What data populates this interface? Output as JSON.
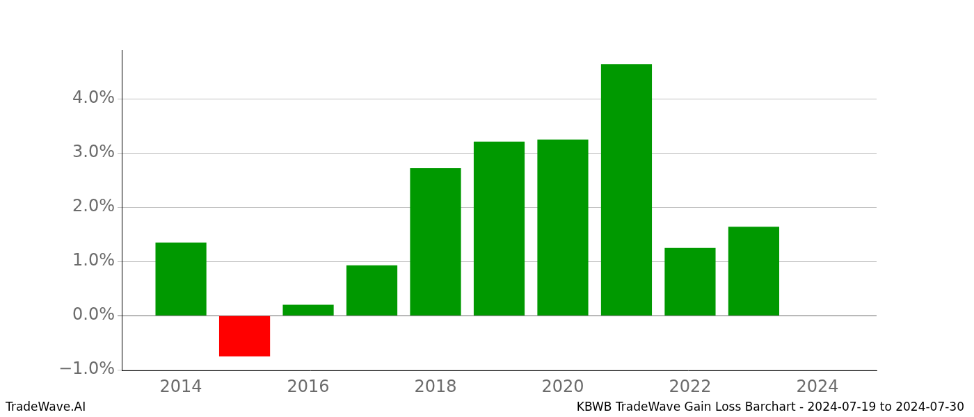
{
  "chart_data": {
    "type": "bar",
    "annotations": [
      "TradeWave.AI",
      "KBWB TradeWave Gain Loss Barchart - 2024-07-19 to 2024-07-30"
    ],
    "x": [
      2014,
      2015,
      2016,
      2017,
      2018,
      2019,
      2020,
      2021,
      2022,
      2023
    ],
    "values": [
      1.35,
      -0.75,
      0.2,
      0.93,
      2.72,
      3.21,
      3.25,
      4.64,
      1.25,
      1.64
    ],
    "colors": [
      "#009900",
      "#ff0000",
      "#009900",
      "#009900",
      "#009900",
      "#009900",
      "#009900",
      "#009900",
      "#009900",
      "#009900"
    ],
    "xlim": [
      2013.07,
      2024.93
    ],
    "xticks": [
      2014,
      2016,
      2018,
      2020,
      2022,
      2024
    ],
    "ylim": [
      -1.01,
      4.9
    ],
    "yticks": [
      {
        "value": -1,
        "label": "−1.0%"
      },
      {
        "value": 0,
        "label": "0.0%"
      },
      {
        "value": 1,
        "label": "1.0%"
      },
      {
        "value": 2,
        "label": "2.0%"
      },
      {
        "value": 3,
        "label": "3.0%"
      },
      {
        "value": 4,
        "label": "4.0%"
      }
    ],
    "grid": true
  }
}
